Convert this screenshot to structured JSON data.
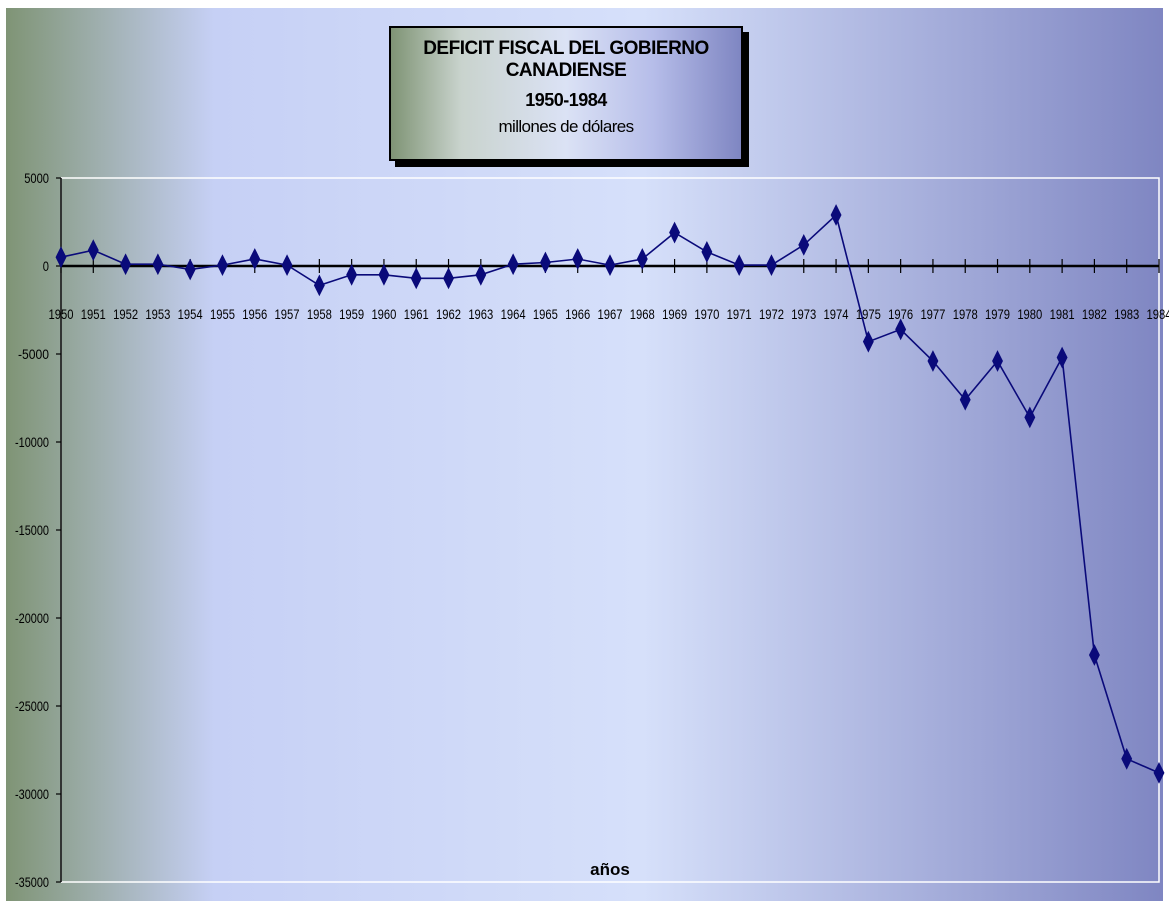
{
  "chart_data": {
    "type": "line",
    "title": "DEFICIT FISCAL DEL GOBIERNO CANADIENSE",
    "subtitle": "1950-1984",
    "units_label": "millones de dólares",
    "xlabel": "años",
    "ylabel": "",
    "ylim": [
      -35000,
      5000
    ],
    "y_ticks": [
      "5000",
      "0",
      "-5000",
      "-10000",
      "-15000",
      "-20000",
      "-25000",
      "-30000",
      "-35000"
    ],
    "y_tick_values": [
      5000,
      0,
      -5000,
      -10000,
      -15000,
      -20000,
      -25000,
      -30000,
      -35000
    ],
    "categories": [
      "1950",
      "1951",
      "1952",
      "1953",
      "1954",
      "1955",
      "1956",
      "1957",
      "1958",
      "1959",
      "1960",
      "1961",
      "1962",
      "1963",
      "1964",
      "1965",
      "1966",
      "1967",
      "1968",
      "1969",
      "1970",
      "1971",
      "1972",
      "1973",
      "1974",
      "1975",
      "1976",
      "1977",
      "1978",
      "1979",
      "1980",
      "1981",
      "1982",
      "1983",
      "1984"
    ],
    "values": [
      500,
      900,
      100,
      100,
      -200,
      50,
      400,
      50,
      -1100,
      -500,
      -500,
      -700,
      -700,
      -500,
      100,
      200,
      400,
      50,
      400,
      1900,
      800,
      50,
      50,
      1200,
      2900,
      -4300,
      -3600,
      -5400,
      -7600,
      -5400,
      -8600,
      -5200,
      -22100,
      -28000,
      -28800
    ],
    "grid": false,
    "legend": "none",
    "colors": {
      "line": "#0a0a7a",
      "marker": "#0a0a7a",
      "zero_axis": "#000000",
      "bg_left": "#7f9475",
      "bg_mid": "#d6e0fa",
      "bg_right": "#7f86c2"
    }
  }
}
